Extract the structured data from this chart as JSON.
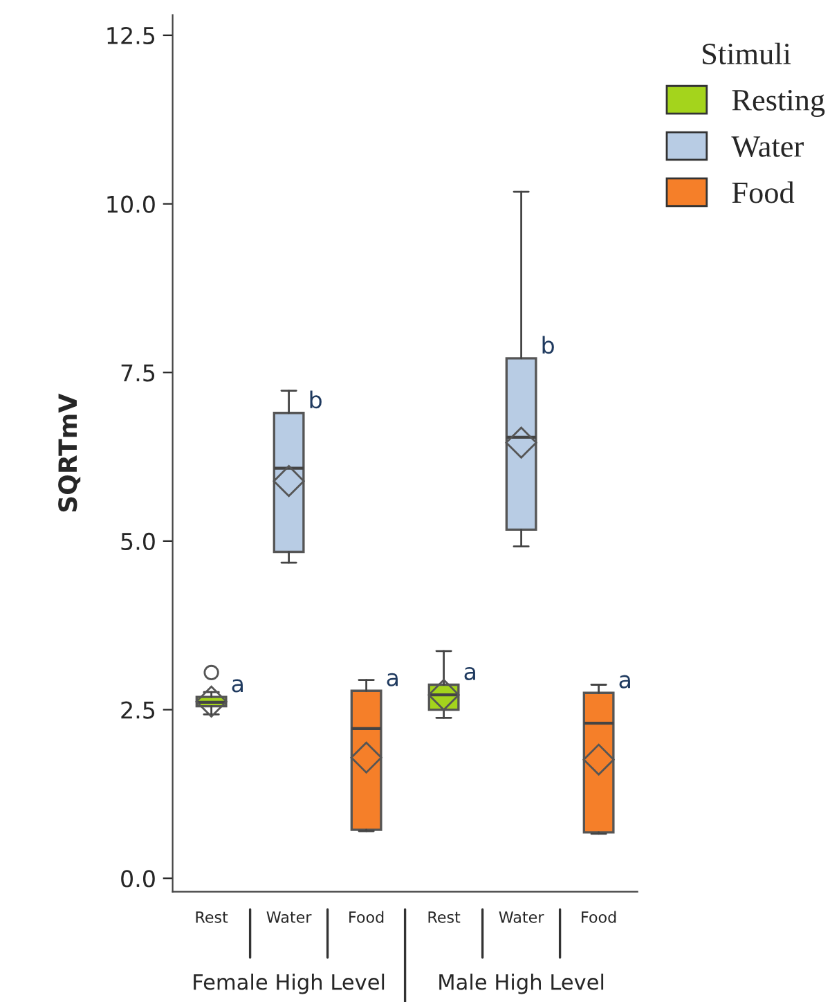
{
  "chart_data": {
    "type": "box",
    "ylabel": "SQRTmV",
    "legend_title": "Stimuli",
    "legend": "top right",
    "categories": [
      "Rest",
      "Water",
      "Food",
      "Rest",
      "Water",
      "Food"
    ],
    "ylim": [
      -0.2,
      12.8
    ],
    "yticks": [
      {
        "value": 0,
        "label": "0.0"
      },
      2.5,
      {
        "value": 5,
        "label": "5.0"
      },
      7.5,
      {
        "value": 10,
        "label": "10.0"
      },
      12.5
    ],
    "series": [
      {
        "name": "Resting",
        "color": "#a4d41c",
        "boxes": [
          {
            "low": 2.43,
            "q1": 2.55,
            "median": 2.61,
            "q3": 2.69,
            "high": 2.76,
            "mean": 2.62,
            "outliers": [
              3.05
            ]
          },
          null,
          null,
          {
            "low": 2.38,
            "q1": 2.5,
            "median": 2.72,
            "q3": 2.87,
            "high": 3.37,
            "mean": 2.72
          },
          null,
          null
        ]
      },
      {
        "name": "Water",
        "color": "#b8cce4",
        "boxes": [
          null,
          {
            "low": 4.68,
            "q1": 4.84,
            "median": 6.08,
            "q3": 6.9,
            "high": 7.23,
            "mean": 5.89
          },
          null,
          null,
          {
            "low": 4.92,
            "q1": 5.17,
            "median": 6.54,
            "q3": 7.71,
            "high": 10.18,
            "mean": 6.46
          },
          null
        ]
      },
      {
        "name": "Food",
        "color": "#f57f29",
        "boxes": [
          null,
          null,
          {
            "low": 0.7,
            "q1": 0.72,
            "median": 2.22,
            "q3": 2.78,
            "high": 2.94,
            "mean": 1.79
          },
          null,
          null,
          {
            "low": 0.66,
            "q1": 0.68,
            "median": 2.3,
            "q3": 2.75,
            "high": 2.87,
            "mean": 1.76
          }
        ]
      }
    ],
    "annotations": [
      "Female High Level",
      "Male High Level",
      "a",
      "b",
      "a",
      "a",
      "b",
      "a"
    ]
  }
}
